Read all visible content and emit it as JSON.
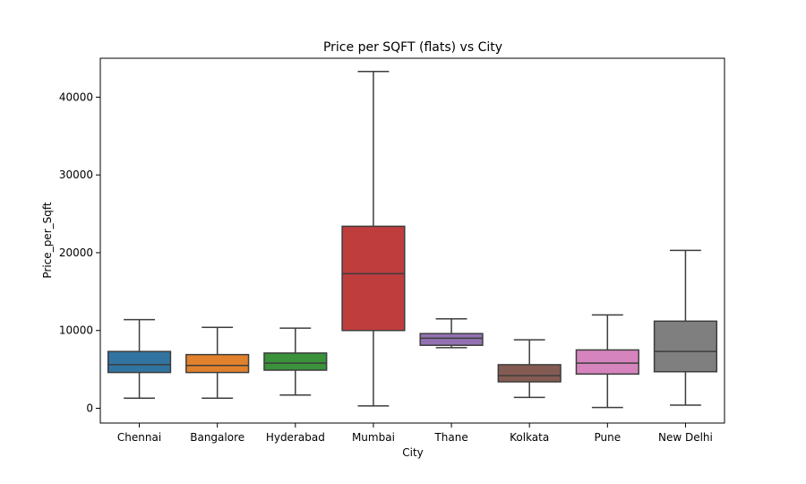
{
  "chart_data": {
    "type": "box",
    "title": "Price per SQFT (flats) vs City",
    "xlabel": "City",
    "ylabel": "Price_per_Sqft",
    "ylim": [
      -1900,
      45000
    ],
    "yticks": [
      0,
      10000,
      20000,
      30000,
      40000
    ],
    "ytick_labels": [
      "0",
      "10000",
      "20000",
      "30000",
      "40000"
    ],
    "grid": false,
    "legend": "none",
    "categories": [
      "Chennai",
      "Bangalore",
      "Hyderabad",
      "Mumbai",
      "Thane",
      "Kolkata",
      "Pune",
      "New Delhi"
    ],
    "boxes": [
      {
        "category": "Chennai",
        "color": "#3274a1",
        "whisker_low": 1300,
        "q1": 4600,
        "median": 5600,
        "q3": 7300,
        "whisker_high": 11400
      },
      {
        "category": "Bangalore",
        "color": "#e1812c",
        "whisker_low": 1300,
        "q1": 4600,
        "median": 5500,
        "q3": 6900,
        "whisker_high": 10400
      },
      {
        "category": "Hyderabad",
        "color": "#3a923a",
        "whisker_low": 1700,
        "q1": 4900,
        "median": 5800,
        "q3": 7100,
        "whisker_high": 10300
      },
      {
        "category": "Mumbai",
        "color": "#c03d3e",
        "whisker_low": 300,
        "q1": 10000,
        "median": 17300,
        "q3": 23400,
        "whisker_high": 43300
      },
      {
        "category": "Thane",
        "color": "#9372b2",
        "whisker_low": 7800,
        "q1": 8100,
        "median": 9000,
        "q3": 9600,
        "whisker_high": 11500
      },
      {
        "category": "Kolkata",
        "color": "#845b53",
        "whisker_low": 1400,
        "q1": 3400,
        "median": 4200,
        "q3": 5600,
        "whisker_high": 8800
      },
      {
        "category": "Pune",
        "color": "#d684bd",
        "whisker_low": 100,
        "q1": 4400,
        "median": 5800,
        "q3": 7500,
        "whisker_high": 12000
      },
      {
        "category": "New Delhi",
        "color": "#7f7f7f",
        "whisker_low": 400,
        "q1": 4700,
        "median": 7300,
        "q3": 11200,
        "whisker_high": 20300
      }
    ]
  }
}
